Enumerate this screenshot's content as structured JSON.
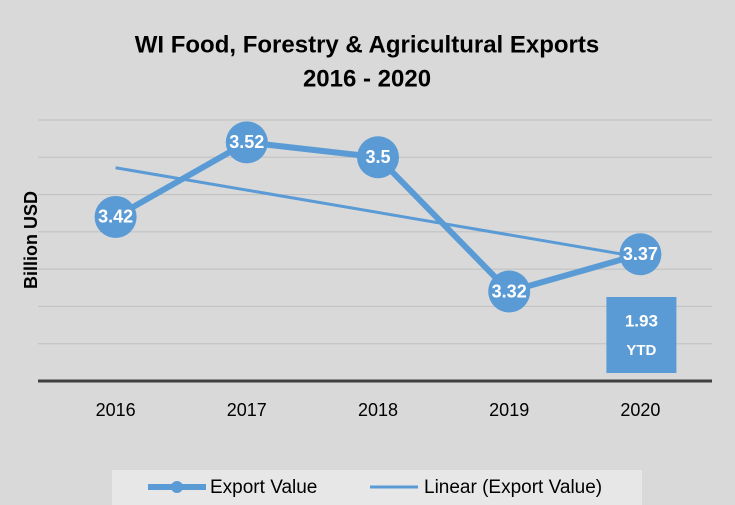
{
  "chart_data": {
    "type": "line",
    "title": [
      "WI Food, Forestry & Agricultural Exports",
      "2016 - 2020"
    ],
    "y_label": "Billion USD",
    "categories": [
      "2016",
      "2017",
      "2018",
      "2019",
      "2020"
    ],
    "series": [
      {
        "name": "Export Value",
        "color": "#5b9bd5",
        "values": [
          3.42,
          3.52,
          3.5,
          3.32,
          3.37
        ]
      }
    ],
    "trendline": {
      "name": "Linear (Export Value)",
      "type": "linear",
      "color": "#5b9bd5"
    },
    "annotation": {
      "value": 1.93,
      "note": "YTD",
      "color": "#5b9bd5"
    },
    "ylim": [
      3.2,
      3.55
    ],
    "yticks": [
      3.2,
      3.25,
      3.3,
      3.35,
      3.4,
      3.45,
      3.5,
      3.55
    ],
    "grid": true
  }
}
